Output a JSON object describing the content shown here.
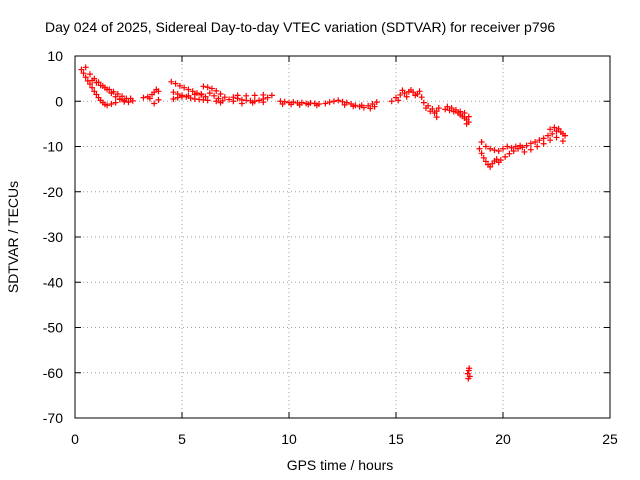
{
  "chart_data": {
    "type": "scatter",
    "title": "Day 024 of 2025, Sidereal Day-to-day VTEC variation (SDTVAR) for receiver p796",
    "xlabel": "GPS time / hours",
    "ylabel": "SDTVAR / TECUs",
    "xlim": [
      0,
      25
    ],
    "ylim": [
      -70,
      10
    ],
    "xticks": [
      0,
      5,
      10,
      15,
      20,
      25
    ],
    "yticks": [
      -70,
      -60,
      -50,
      -40,
      -30,
      -20,
      -10,
      0,
      10
    ],
    "xtick_labels": [
      "0",
      "5",
      "10",
      "15",
      "20",
      "25"
    ],
    "ytick_labels": [
      "-70",
      "-60",
      "-50",
      "-40",
      "-30",
      "-20",
      "-10",
      "0",
      "10"
    ],
    "grid": true,
    "marker": "+",
    "series": [
      {
        "name": "SDTVAR",
        "color": "#ff0000",
        "points": [
          [
            0.3,
            7.0
          ],
          [
            0.4,
            6.2
          ],
          [
            0.5,
            5.3
          ],
          [
            0.6,
            4.5
          ],
          [
            0.7,
            3.8
          ],
          [
            0.8,
            3.0
          ],
          [
            0.9,
            2.2
          ],
          [
            1.0,
            1.5
          ],
          [
            1.1,
            0.8
          ],
          [
            1.2,
            0.2
          ],
          [
            1.3,
            -0.3
          ],
          [
            1.4,
            -0.7
          ],
          [
            0.5,
            7.5
          ],
          [
            0.7,
            6.0
          ],
          [
            0.9,
            5.0
          ],
          [
            1.1,
            4.2
          ],
          [
            1.3,
            3.4
          ],
          [
            1.5,
            2.6
          ],
          [
            1.7,
            1.8
          ],
          [
            1.9,
            1.0
          ],
          [
            2.1,
            0.4
          ],
          [
            2.3,
            -0.1
          ],
          [
            0.8,
            4.6
          ],
          [
            1.0,
            4.1
          ],
          [
            1.2,
            3.5
          ],
          [
            1.4,
            3.0
          ],
          [
            1.6,
            2.6
          ],
          [
            1.8,
            2.1
          ],
          [
            2.0,
            1.6
          ],
          [
            2.2,
            1.1
          ],
          [
            2.4,
            0.6
          ],
          [
            1.5,
            -0.9
          ],
          [
            1.7,
            -0.6
          ],
          [
            1.9,
            -0.3
          ],
          [
            2.1,
            0.5
          ],
          [
            2.3,
            0.2
          ],
          [
            2.5,
            -0.2
          ],
          [
            2.6,
            0.6
          ],
          [
            2.7,
            0.1
          ],
          [
            3.2,
            0.8
          ],
          [
            3.4,
            1.0
          ],
          [
            3.5,
            0.6
          ],
          [
            3.6,
            1.5
          ],
          [
            3.7,
            2.0
          ],
          [
            3.8,
            2.6
          ],
          [
            3.9,
            2.2
          ],
          [
            3.7,
            -0.5
          ],
          [
            3.9,
            0.3
          ],
          [
            4.5,
            4.3
          ],
          [
            4.7,
            3.9
          ],
          [
            4.9,
            3.4
          ],
          [
            5.1,
            3.0
          ],
          [
            5.3,
            2.6
          ],
          [
            5.5,
            2.2
          ],
          [
            5.7,
            1.8
          ],
          [
            5.9,
            1.4
          ],
          [
            6.1,
            1.0
          ],
          [
            4.6,
            2.0
          ],
          [
            4.8,
            1.6
          ],
          [
            5.0,
            1.3
          ],
          [
            5.2,
            1.0
          ],
          [
            5.4,
            0.7
          ],
          [
            5.6,
            0.5
          ],
          [
            5.8,
            0.4
          ],
          [
            6.0,
            0.3
          ],
          [
            6.2,
            0.2
          ],
          [
            4.6,
            0.5
          ],
          [
            4.8,
            0.8
          ],
          [
            5.0,
            1.0
          ],
          [
            5.3,
            1.2
          ],
          [
            5.6,
            1.5
          ],
          [
            5.9,
            1.6
          ],
          [
            6.0,
            3.3
          ],
          [
            6.2,
            3.1
          ],
          [
            6.4,
            2.8
          ],
          [
            6.6,
            2.3
          ],
          [
            6.8,
            1.6
          ],
          [
            7.0,
            0.9
          ],
          [
            7.2,
            0.4
          ],
          [
            7.4,
            0.0
          ],
          [
            6.3,
            1.8
          ],
          [
            6.5,
            1.2
          ],
          [
            6.7,
            0.6
          ],
          [
            6.9,
            0.1
          ],
          [
            6.6,
            0.0
          ],
          [
            6.8,
            -0.3
          ],
          [
            7.4,
            0.9
          ],
          [
            7.6,
            0.6
          ],
          [
            7.8,
            0.3
          ],
          [
            8.0,
            0.2
          ],
          [
            8.2,
            0.1
          ],
          [
            8.4,
            0.0
          ],
          [
            8.6,
            0.2
          ],
          [
            8.8,
            0.5
          ],
          [
            9.0,
            0.8
          ],
          [
            7.6,
            1.3
          ],
          [
            8.0,
            1.2
          ],
          [
            8.4,
            1.3
          ],
          [
            8.8,
            1.4
          ],
          [
            9.2,
            1.3
          ],
          [
            7.8,
            -0.5
          ],
          [
            8.3,
            -0.3
          ],
          [
            8.8,
            -0.2
          ],
          [
            9.6,
            0.0
          ],
          [
            9.8,
            -0.1
          ],
          [
            10.0,
            -0.3
          ],
          [
            10.2,
            -0.2
          ],
          [
            10.4,
            -0.4
          ],
          [
            10.6,
            -0.3
          ],
          [
            10.8,
            -0.5
          ],
          [
            11.0,
            -0.4
          ],
          [
            11.2,
            -0.5
          ],
          [
            11.4,
            -0.6
          ],
          [
            9.7,
            -0.6
          ],
          [
            10.1,
            -0.7
          ],
          [
            10.5,
            -0.8
          ],
          [
            10.9,
            -0.7
          ],
          [
            11.3,
            -0.9
          ],
          [
            11.7,
            -0.5
          ],
          [
            11.9,
            -0.2
          ],
          [
            12.1,
            0.0
          ],
          [
            12.3,
            0.2
          ],
          [
            12.5,
            -0.1
          ],
          [
            12.7,
            -0.3
          ],
          [
            12.9,
            -0.6
          ],
          [
            13.1,
            -0.9
          ],
          [
            13.3,
            -1.2
          ],
          [
            13.5,
            -1.4
          ],
          [
            13.7,
            -1.0
          ],
          [
            13.9,
            -0.6
          ],
          [
            14.1,
            -0.2
          ],
          [
            12.6,
            -0.8
          ],
          [
            13.0,
            -1.1
          ],
          [
            13.4,
            -0.9
          ],
          [
            13.8,
            -1.6
          ],
          [
            14.0,
            -1.2
          ],
          [
            14.8,
            0.0
          ],
          [
            15.0,
            0.8
          ],
          [
            15.2,
            1.4
          ],
          [
            15.4,
            1.8
          ],
          [
            15.6,
            2.1
          ],
          [
            15.8,
            2.0
          ],
          [
            16.0,
            1.6
          ],
          [
            15.3,
            2.4
          ],
          [
            15.7,
            2.5
          ],
          [
            16.1,
            2.2
          ],
          [
            15.1,
            0.2
          ],
          [
            15.5,
            1.0
          ],
          [
            15.9,
            1.3
          ],
          [
            16.2,
            0.9
          ],
          [
            16.3,
            -0.3
          ],
          [
            16.5,
            -1.0
          ],
          [
            16.7,
            -1.7
          ],
          [
            16.8,
            -2.6
          ],
          [
            16.6,
            -2.2
          ],
          [
            16.9,
            -3.5
          ],
          [
            17.0,
            -1.5
          ],
          [
            16.4,
            -1.5
          ],
          [
            16.9,
            -2.2
          ],
          [
            17.3,
            -1.8
          ],
          [
            17.5,
            -2.0
          ],
          [
            17.7,
            -2.3
          ],
          [
            17.9,
            -2.6
          ],
          [
            18.0,
            -3.0
          ],
          [
            18.1,
            -3.3
          ],
          [
            18.2,
            -3.7
          ],
          [
            18.3,
            -4.1
          ],
          [
            18.4,
            -4.6
          ],
          [
            17.4,
            -1.2
          ],
          [
            17.6,
            -1.5
          ],
          [
            17.8,
            -1.9
          ],
          [
            18.0,
            -2.3
          ],
          [
            18.2,
            -2.6
          ],
          [
            18.4,
            -3.4
          ],
          [
            18.3,
            -5.0
          ],
          [
            18.35,
            -60.2
          ],
          [
            18.4,
            -59.5
          ],
          [
            18.45,
            -60.8
          ],
          [
            18.38,
            -61.3
          ],
          [
            18.42,
            -59.0
          ],
          [
            18.9,
            -10.5
          ],
          [
            19.0,
            -11.5
          ],
          [
            19.1,
            -12.5
          ],
          [
            19.2,
            -13.3
          ],
          [
            19.3,
            -14.0
          ],
          [
            19.4,
            -14.5
          ],
          [
            19.5,
            -13.8
          ],
          [
            19.6,
            -13.2
          ],
          [
            19.7,
            -12.8
          ],
          [
            19.8,
            -13.5
          ],
          [
            19.0,
            -9.0
          ],
          [
            19.2,
            -10.0
          ],
          [
            19.4,
            -10.5
          ],
          [
            19.6,
            -10.8
          ],
          [
            19.8,
            -11.0
          ],
          [
            20.0,
            -10.5
          ],
          [
            20.2,
            -10.0
          ],
          [
            20.4,
            -10.3
          ],
          [
            20.6,
            -10.0
          ],
          [
            20.8,
            -9.8
          ],
          [
            19.9,
            -13.0
          ],
          [
            20.1,
            -12.3
          ],
          [
            20.3,
            -11.6
          ],
          [
            20.5,
            -11.0
          ],
          [
            20.7,
            -10.5
          ],
          [
            20.9,
            -10.2
          ],
          [
            21.1,
            -9.8
          ],
          [
            21.3,
            -9.3
          ],
          [
            21.5,
            -9.0
          ],
          [
            21.7,
            -8.6
          ],
          [
            21.0,
            -11.2
          ],
          [
            21.3,
            -10.7
          ],
          [
            21.6,
            -10.0
          ],
          [
            21.9,
            -9.4
          ],
          [
            22.2,
            -8.6
          ],
          [
            22.5,
            -8.0
          ],
          [
            22.8,
            -8.8
          ],
          [
            21.9,
            -8.2
          ],
          [
            22.1,
            -7.6
          ],
          [
            22.3,
            -7.2
          ],
          [
            22.5,
            -6.6
          ],
          [
            22.7,
            -6.8
          ],
          [
            22.9,
            -7.6
          ],
          [
            22.2,
            -6.2
          ],
          [
            22.4,
            -5.8
          ],
          [
            22.6,
            -6.1
          ],
          [
            22.8,
            -7.2
          ]
        ]
      }
    ]
  }
}
